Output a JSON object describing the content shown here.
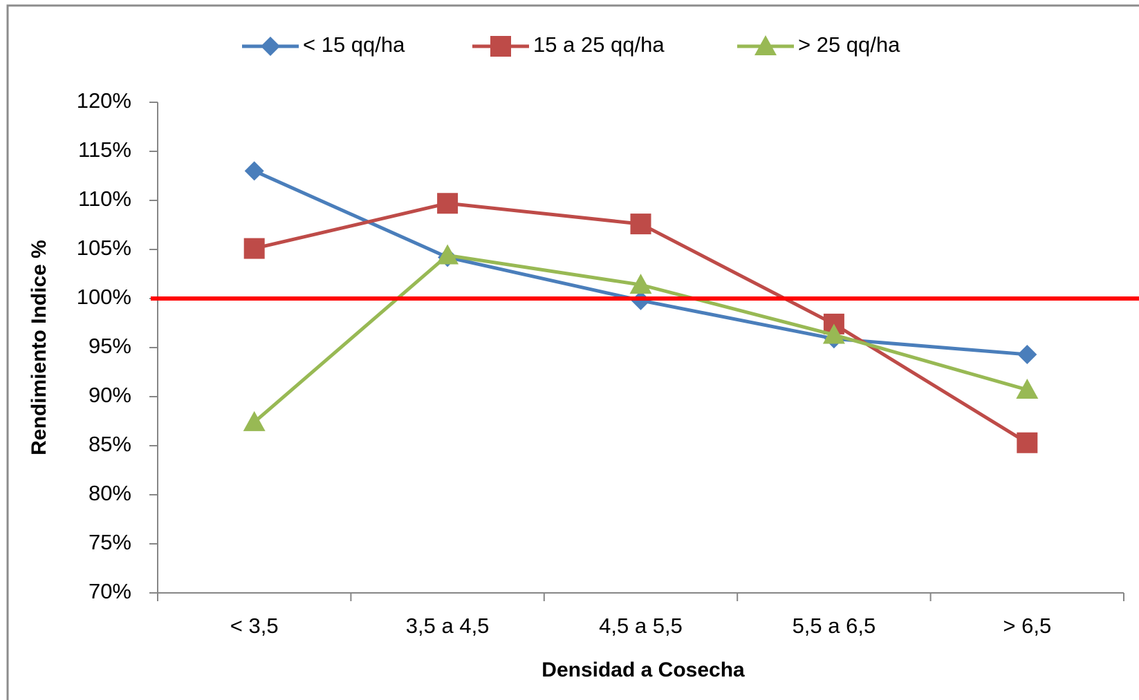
{
  "chart_data": {
    "type": "line",
    "x_label": "Densidad a Cosecha",
    "y_label": "Rendimiento Indice %",
    "categories": [
      "< 3,5",
      "3,5 a 4,5",
      "4,5 a 5,5",
      "5,5 a 6,5",
      "> 6,5"
    ],
    "series": [
      {
        "name": "< 15 qq/ha",
        "color": "#4a7ebb",
        "marker": "diamond",
        "values": [
          113.0,
          104.2,
          99.8,
          95.9,
          94.3
        ]
      },
      {
        "name": "15 a 25 qq/ha",
        "color": "#be4b48",
        "marker": "square",
        "values": [
          105.1,
          109.7,
          107.6,
          97.4,
          85.3
        ]
      },
      {
        "name": "> 25 qq/ha",
        "color": "#98b954",
        "marker": "triangle",
        "values": [
          87.4,
          104.4,
          101.4,
          96.3,
          90.7
        ]
      }
    ],
    "reference_line": 100,
    "reference_color": "#ff0000",
    "ylim": [
      70,
      120
    ],
    "yticks": [
      {
        "value": 70,
        "label": "70%"
      },
      {
        "value": 75,
        "label": "75%"
      },
      {
        "value": 80,
        "label": "80%"
      },
      {
        "value": 85,
        "label": "85%"
      },
      {
        "value": 90,
        "label": "90%"
      },
      {
        "value": 95,
        "label": "95%"
      },
      {
        "value": 100,
        "label": "100%"
      },
      {
        "value": 105,
        "label": "105%"
      },
      {
        "value": 110,
        "label": "110%"
      },
      {
        "value": 115,
        "label": "115%"
      },
      {
        "value": 120,
        "label": "120%"
      }
    ],
    "legend": "top",
    "grid": false
  }
}
